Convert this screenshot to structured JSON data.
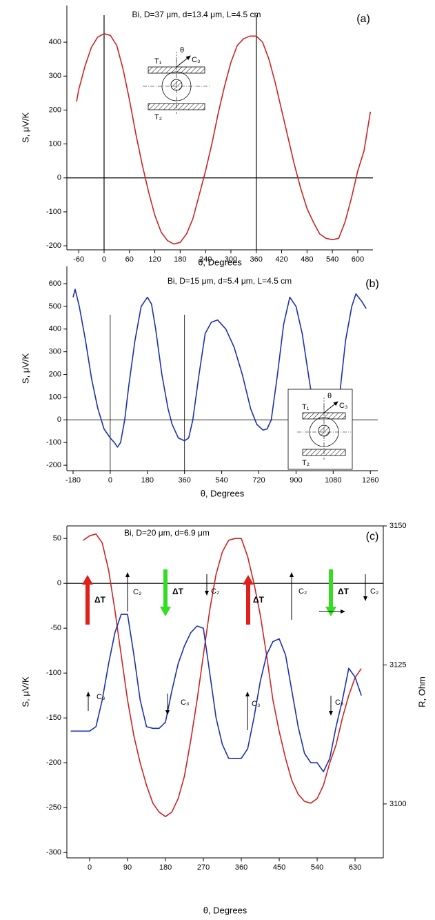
{
  "chart_data": [
    {
      "type": "line",
      "title": "Bi, D=37 μm, d=13.4 μm, L=4.5 cm",
      "panel_label": "(a)",
      "x_label": "θ, Degrees",
      "y_label": "S, μV/K",
      "xlim": [
        -88,
        636
      ],
      "ylim": [
        -212,
        508
      ],
      "xticks": [
        -60,
        0,
        60,
        120,
        180,
        240,
        300,
        360,
        420,
        480,
        540,
        600
      ],
      "yticks": [
        -200,
        -100,
        0,
        100,
        200,
        300,
        400
      ],
      "vlines": [
        0,
        360
      ],
      "hlines": [
        0
      ],
      "inset_labels": [
        "T₁",
        "θ",
        "C₃",
        "T₂"
      ],
      "x": [
        -65,
        -60,
        -45,
        -30,
        -15,
        0,
        15,
        30,
        45,
        60,
        75,
        90,
        105,
        120,
        135,
        150,
        165,
        180,
        195,
        210,
        225,
        240,
        255,
        270,
        285,
        300,
        315,
        330,
        345,
        360,
        375,
        390,
        405,
        420,
        435,
        450,
        465,
        480,
        495,
        510,
        525,
        540,
        555,
        570,
        585,
        600,
        615,
        630
      ],
      "series": [
        {
          "color": "#cc2222",
          "values": [
            225,
            260,
            330,
            385,
            415,
            425,
            420,
            390,
            320,
            230,
            130,
            40,
            -40,
            -110,
            -160,
            -185,
            -195,
            -190,
            -165,
            -120,
            -50,
            20,
            100,
            190,
            270,
            340,
            390,
            410,
            418,
            418,
            400,
            350,
            280,
            200,
            120,
            40,
            -30,
            -90,
            -130,
            -165,
            -178,
            -182,
            -178,
            -130,
            -60,
            20,
            80,
            195
          ]
        }
      ]
    },
    {
      "type": "line",
      "title": "Bi, D=15 μm, d=5.4 μm, L=4.5 cm",
      "panel_label": "(b)",
      "x_label": "θ, Degrees",
      "y_label": "S, μV/K",
      "xlim": [
        -210,
        1296
      ],
      "ylim": [
        -224,
        676
      ],
      "xticks": [
        -180,
        0,
        180,
        360,
        540,
        720,
        900,
        1080,
        1260
      ],
      "yticks": [
        -200,
        -100,
        0,
        100,
        200,
        300,
        400,
        500,
        600
      ],
      "vlines": [
        0,
        360
      ],
      "hlines": [
        0
      ],
      "inset_labels": [
        "T₁",
        "θ",
        "C₃",
        "T₂"
      ],
      "x": [
        -180,
        -170,
        -150,
        -120,
        -90,
        -60,
        -30,
        0,
        20,
        35,
        50,
        70,
        90,
        120,
        150,
        180,
        200,
        220,
        250,
        280,
        300,
        330,
        360,
        380,
        400,
        430,
        460,
        490,
        520,
        560,
        600,
        640,
        680,
        710,
        740,
        760,
        780,
        810,
        840,
        870,
        900,
        930,
        960,
        990,
        1020,
        1050,
        1070,
        1090,
        1110,
        1140,
        1170,
        1190,
        1220,
        1240
      ],
      "series": [
        {
          "color": "#1a2fb0",
          "values": [
            540,
            575,
            500,
            350,
            180,
            50,
            -40,
            -80,
            -100,
            -120,
            -100,
            0,
            150,
            350,
            500,
            540,
            510,
            400,
            200,
            50,
            -20,
            -80,
            -92,
            -80,
            0,
            200,
            380,
            430,
            440,
            400,
            320,
            200,
            50,
            -20,
            -45,
            -40,
            0,
            200,
            420,
            540,
            500,
            380,
            200,
            20,
            -80,
            -130,
            -135,
            -80,
            100,
            350,
            500,
            555,
            520,
            490
          ]
        }
      ]
    },
    {
      "type": "line",
      "title": "Bi, D=20 μm, d=6.9 μm",
      "panel_label": "(c)",
      "x_label": "θ, Degrees",
      "y_label": "S, μV/K",
      "y2_label": "R, Ohm",
      "xlim": [
        -54,
        697
      ],
      "ylim": [
        -306,
        64
      ],
      "y2lim": [
        3090.3,
        3150
      ],
      "xticks": [
        0,
        90,
        180,
        270,
        360,
        450,
        540,
        630
      ],
      "yticks": [
        -300,
        -250,
        -200,
        -150,
        -100,
        -50,
        0,
        50
      ],
      "y2ticks": [
        3100,
        3125,
        3150
      ],
      "hlines": [
        0
      ],
      "annotations": [
        "ΔT",
        "ΔT",
        "ΔT",
        "ΔT",
        "C₂",
        "C₂",
        "C₂",
        "C₂",
        "C₃",
        "C₃",
        "C₃",
        "C₃"
      ],
      "x": [
        -45,
        -30,
        -15,
        0,
        15,
        30,
        45,
        60,
        75,
        90,
        105,
        120,
        135,
        150,
        165,
        180,
        195,
        210,
        225,
        240,
        255,
        270,
        285,
        300,
        315,
        330,
        345,
        360,
        375,
        390,
        405,
        420,
        435,
        450,
        465,
        480,
        495,
        510,
        525,
        540,
        555,
        570,
        585,
        600,
        615,
        630,
        645
      ],
      "series": [
        {
          "color": "#cc2222",
          "values": [
            null,
            null,
            48,
            53,
            55,
            45,
            15,
            -30,
            -80,
            -130,
            -170,
            -200,
            -225,
            -245,
            -255,
            -260,
            -255,
            -240,
            -215,
            -175,
            -130,
            -80,
            -30,
            10,
            35,
            48,
            50,
            50,
            30,
            0,
            -35,
            -80,
            -130,
            -165,
            -195,
            -220,
            -235,
            -243,
            -245,
            -240,
            -225,
            -200,
            -180,
            -150,
            -125,
            -105,
            -95
          ]
        },
        {
          "color": "#1a2fb0",
          "axis": "y2",
          "values": [
            3113.1,
            3113.1,
            3113.1,
            3113.1,
            3113.9,
            3118.7,
            3125.2,
            3130.8,
            3134.1,
            3134.1,
            3126.8,
            3118.7,
            3113.9,
            3113.6,
            3113.6,
            3114.7,
            3120.3,
            3125.2,
            3128.4,
            3130.8,
            3132.0,
            3131.6,
            3123.6,
            3115.5,
            3110.7,
            3108.2,
            3108.2,
            3108.2,
            3109.9,
            3115.5,
            3122.0,
            3126.8,
            3129.2,
            3129.7,
            3126.8,
            3120.3,
            3113.9,
            3109.1,
            3107.4,
            3107.4,
            3105.8,
            3108.2,
            3113.9,
            3118.7,
            3124.4,
            3122.8,
            3119.5
          ]
        }
      ]
    }
  ]
}
